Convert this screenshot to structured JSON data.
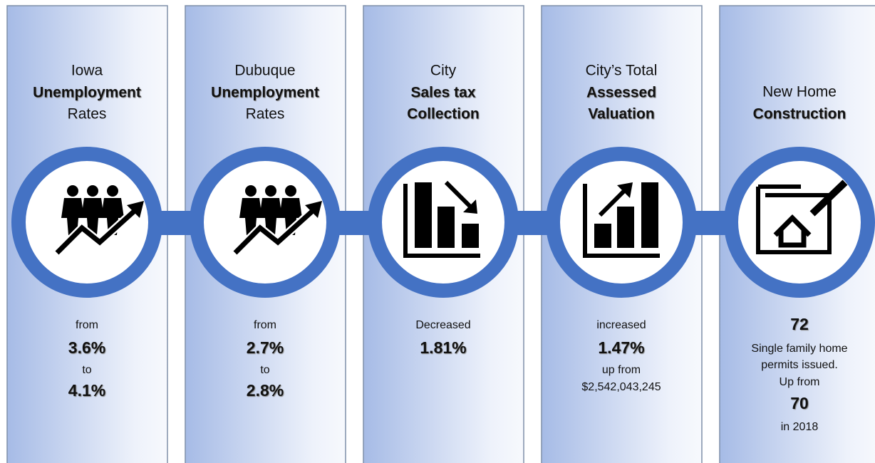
{
  "panels": [
    {
      "title": [
        "Iowa",
        "Unemployment",
        "Rates"
      ],
      "details": [
        "from",
        "3.6%",
        "to",
        "4.1%"
      ]
    },
    {
      "title": [
        "Dubuque",
        "Unemployment",
        "Rates"
      ],
      "details": [
        "from",
        "2.7%",
        "to",
        "2.8%"
      ]
    },
    {
      "title": [
        "City",
        "Sales tax",
        "Collection"
      ],
      "details": [
        "Decreased",
        "1.81%"
      ]
    },
    {
      "title": [
        "City’s Total",
        "Assessed",
        "Valuation"
      ],
      "details": [
        "increased",
        "1.47%",
        "up from",
        "$2,542,043,245"
      ]
    },
    {
      "title": [
        "New Home",
        "Construction"
      ],
      "details": [
        "72",
        "Single family home",
        "permits issued.",
        "Up from",
        "70",
        "in 2018"
      ]
    }
  ]
}
